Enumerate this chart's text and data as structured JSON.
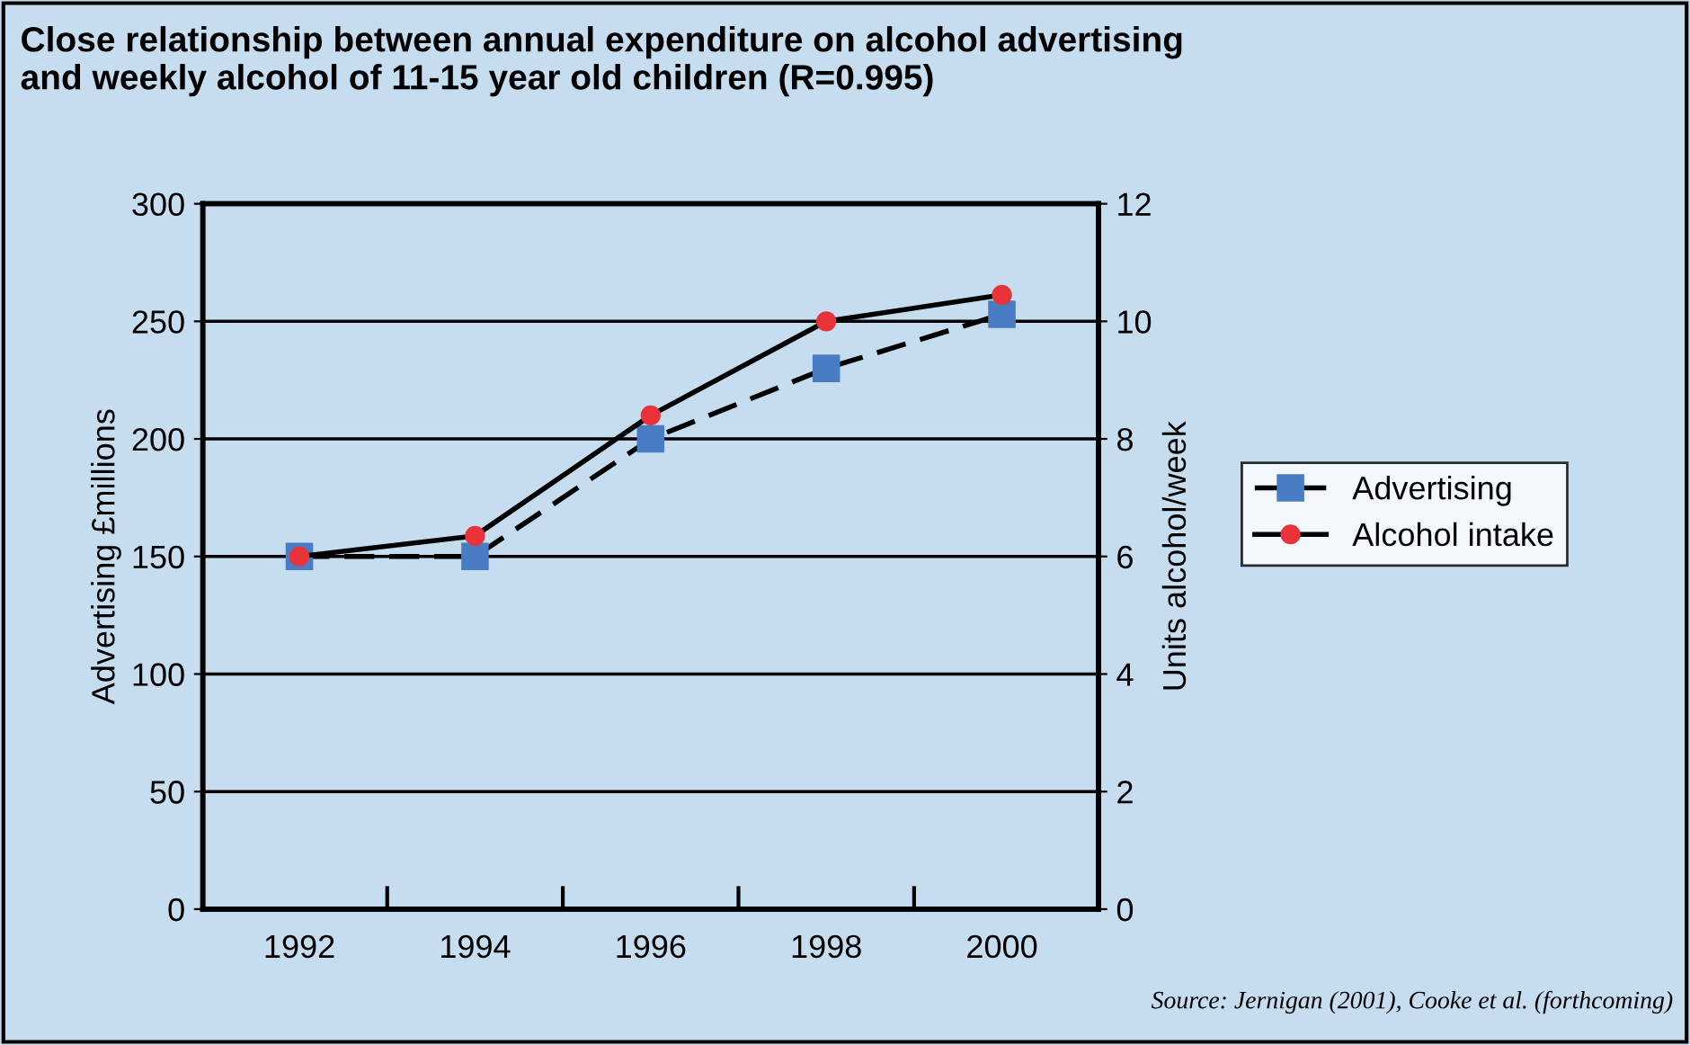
{
  "chart_data": {
    "type": "line",
    "title": "Close relationship between annual expenditure on alcohol advertising\nand weekly alcohol of 11-15 year old children (R=0.995)",
    "ylabel": "Advertising £millions",
    "y2label": "Units alcohol/week",
    "categories": [
      "1992",
      "1994",
      "1996",
      "1998",
      "2000"
    ],
    "series": [
      {
        "name": "Advertising",
        "color": "#4a7cc4",
        "values": [
          150,
          150,
          200,
          230,
          253
        ],
        "marker": "square",
        "line_style": "dashed"
      },
      {
        "name": "Alcohol intake",
        "color": "#e8333a",
        "values": [
          6.0,
          6.35,
          8.4,
          10.0,
          10.45
        ],
        "marker": "circle",
        "line_style": "solid",
        "axis": "y2"
      }
    ],
    "ylim": [
      0,
      300
    ],
    "yticks": [
      0,
      50,
      100,
      150,
      200,
      250,
      300
    ],
    "y2lim": [
      0,
      12
    ],
    "y2ticks": [
      0,
      2,
      4,
      6,
      8,
      10,
      12
    ],
    "grid": "y",
    "legend": "right",
    "annotations": [
      "Source: Jernigan (2001), Cooke et al. (forthcoming)"
    ]
  }
}
